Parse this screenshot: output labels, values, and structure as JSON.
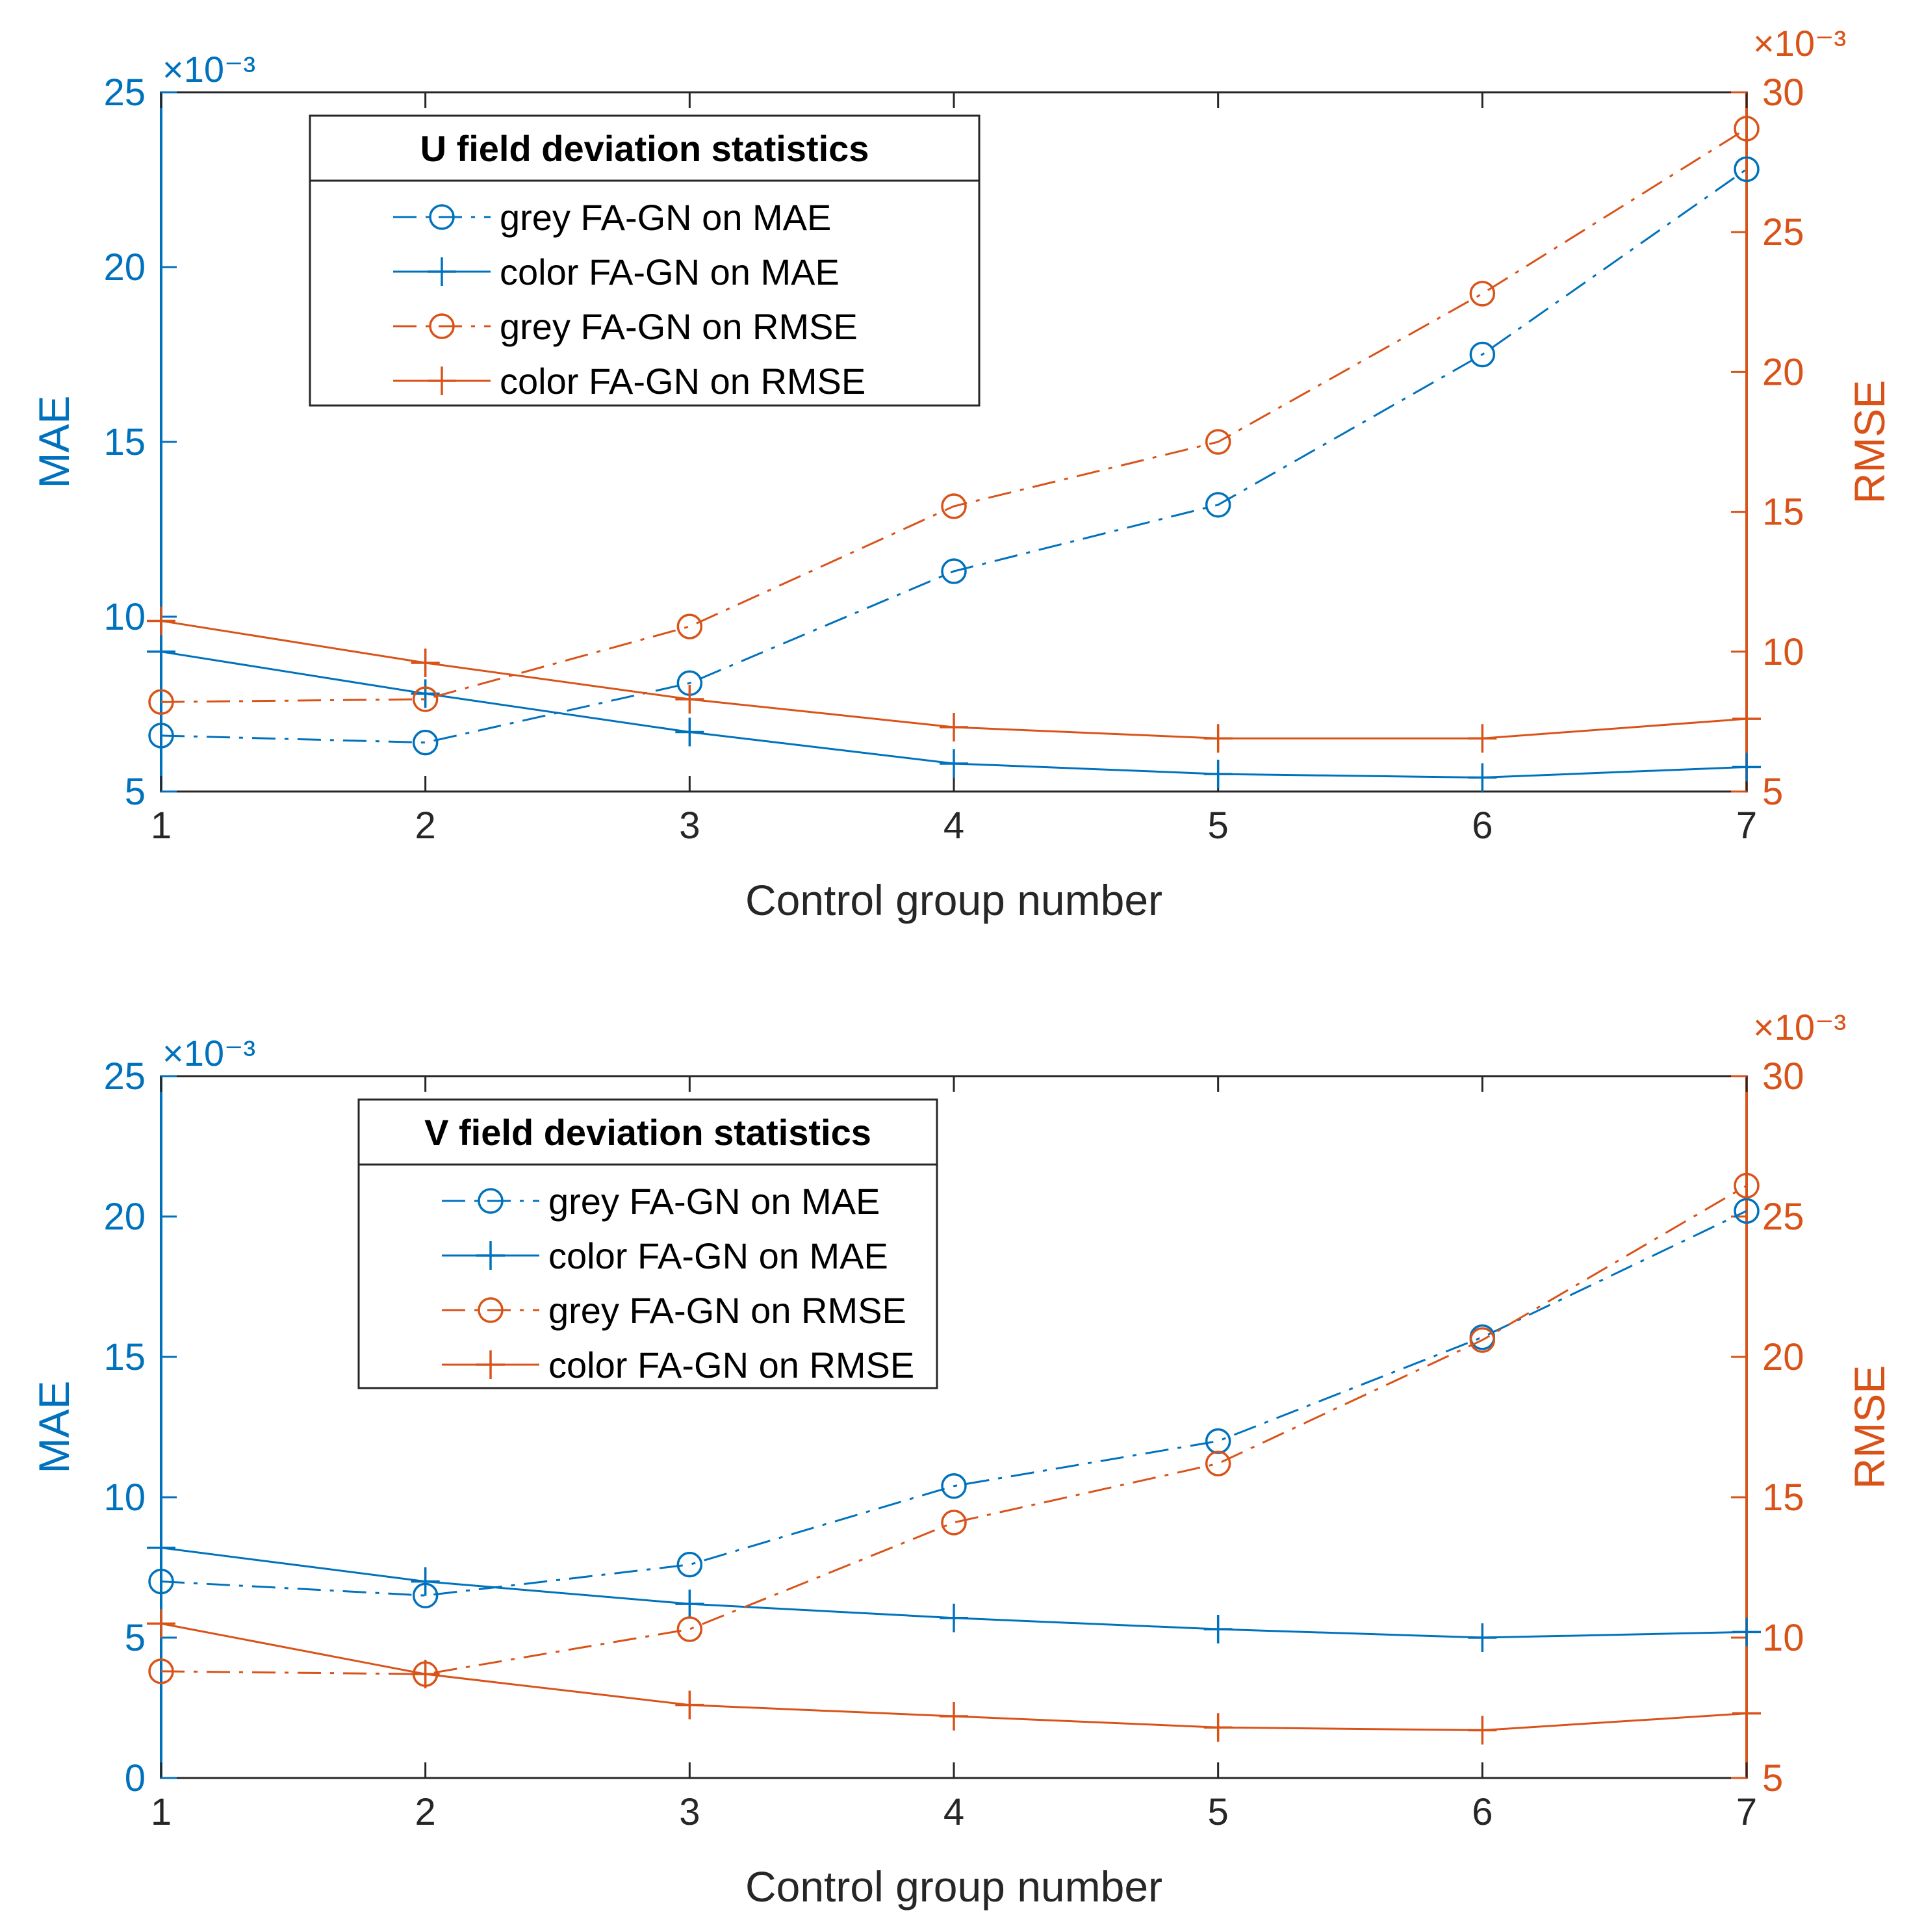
{
  "colors": {
    "mae": "#0072BD",
    "rmse": "#D95319",
    "axis": "#262626",
    "frame": "#262626",
    "background": "#ffffff"
  },
  "chart_data": [
    {
      "type": "line",
      "legend_title": "U field deviation statistics",
      "xlabel": "Control group number",
      "ylabel_left": "MAE",
      "ylabel_right": "RMSE",
      "exponent_left": "×10⁻³",
      "exponent_right": "×10⁻³",
      "x": [
        1,
        2,
        3,
        4,
        5,
        6,
        7
      ],
      "xticks": [
        1,
        2,
        3,
        4,
        5,
        6,
        7
      ],
      "xlim": [
        1,
        7
      ],
      "ylim_left": [
        5,
        25
      ],
      "ylim_right": [
        5,
        30
      ],
      "yticks_left": [
        5,
        10,
        15,
        20,
        25
      ],
      "yticks_right": [
        5,
        10,
        15,
        20,
        25,
        30
      ],
      "grid": false,
      "legend_position": "top-left",
      "series": [
        {
          "name": "grey FA-GN on MAE",
          "axis": "left",
          "color": "mae",
          "marker": "circle",
          "line": "dashdot",
          "values": [
            6.6,
            6.4,
            8.1,
            11.3,
            13.2,
            17.5,
            22.8
          ]
        },
        {
          "name": "color FA-GN on MAE",
          "axis": "left",
          "color": "mae",
          "marker": "plus",
          "line": "solid",
          "values": [
            9.0,
            7.8,
            6.7,
            5.8,
            5.5,
            5.4,
            5.7
          ]
        },
        {
          "name": "grey FA-GN on RMSE",
          "axis": "right",
          "color": "rmse",
          "marker": "circle",
          "line": "dashdot",
          "values": [
            8.2,
            8.3,
            10.9,
            15.2,
            17.5,
            22.8,
            28.7
          ]
        },
        {
          "name": "color FA-GN on RMSE",
          "axis": "right",
          "color": "rmse",
          "marker": "plus",
          "line": "solid",
          "values": [
            11.1,
            9.6,
            8.3,
            7.3,
            6.9,
            6.9,
            7.6
          ]
        }
      ]
    },
    {
      "type": "line",
      "legend_title": "V field deviation statistics",
      "xlabel": "Control group number",
      "ylabel_left": "MAE",
      "ylabel_right": "RMSE",
      "exponent_left": "×10⁻³",
      "exponent_right": "×10⁻³",
      "x": [
        1,
        2,
        3,
        4,
        5,
        6,
        7
      ],
      "xticks": [
        1,
        2,
        3,
        4,
        5,
        6,
        7
      ],
      "xlim": [
        1,
        7
      ],
      "ylim_left": [
        0,
        25
      ],
      "ylim_right": [
        5,
        30
      ],
      "yticks_left": [
        0,
        5,
        10,
        15,
        20,
        25
      ],
      "yticks_right": [
        5,
        10,
        15,
        20,
        25,
        30
      ],
      "grid": false,
      "legend_position": "top-left",
      "series": [
        {
          "name": "grey FA-GN on MAE",
          "axis": "left",
          "color": "mae",
          "marker": "circle",
          "line": "dashdot",
          "values": [
            7.0,
            6.5,
            7.6,
            10.4,
            12.0,
            15.7,
            20.2
          ]
        },
        {
          "name": "color FA-GN on MAE",
          "axis": "left",
          "color": "mae",
          "marker": "plus",
          "line": "solid",
          "values": [
            8.2,
            7.0,
            6.2,
            5.7,
            5.3,
            5.0,
            5.2
          ]
        },
        {
          "name": "grey FA-GN on RMSE",
          "axis": "right",
          "color": "rmse",
          "marker": "circle",
          "line": "dashdot",
          "values": [
            8.8,
            8.7,
            10.3,
            14.1,
            16.2,
            20.6,
            26.1
          ]
        },
        {
          "name": "color FA-GN on RMSE",
          "axis": "right",
          "color": "rmse",
          "marker": "plus",
          "line": "solid",
          "values": [
            10.5,
            8.7,
            7.6,
            7.2,
            6.8,
            6.7,
            7.3
          ]
        }
      ]
    }
  ]
}
